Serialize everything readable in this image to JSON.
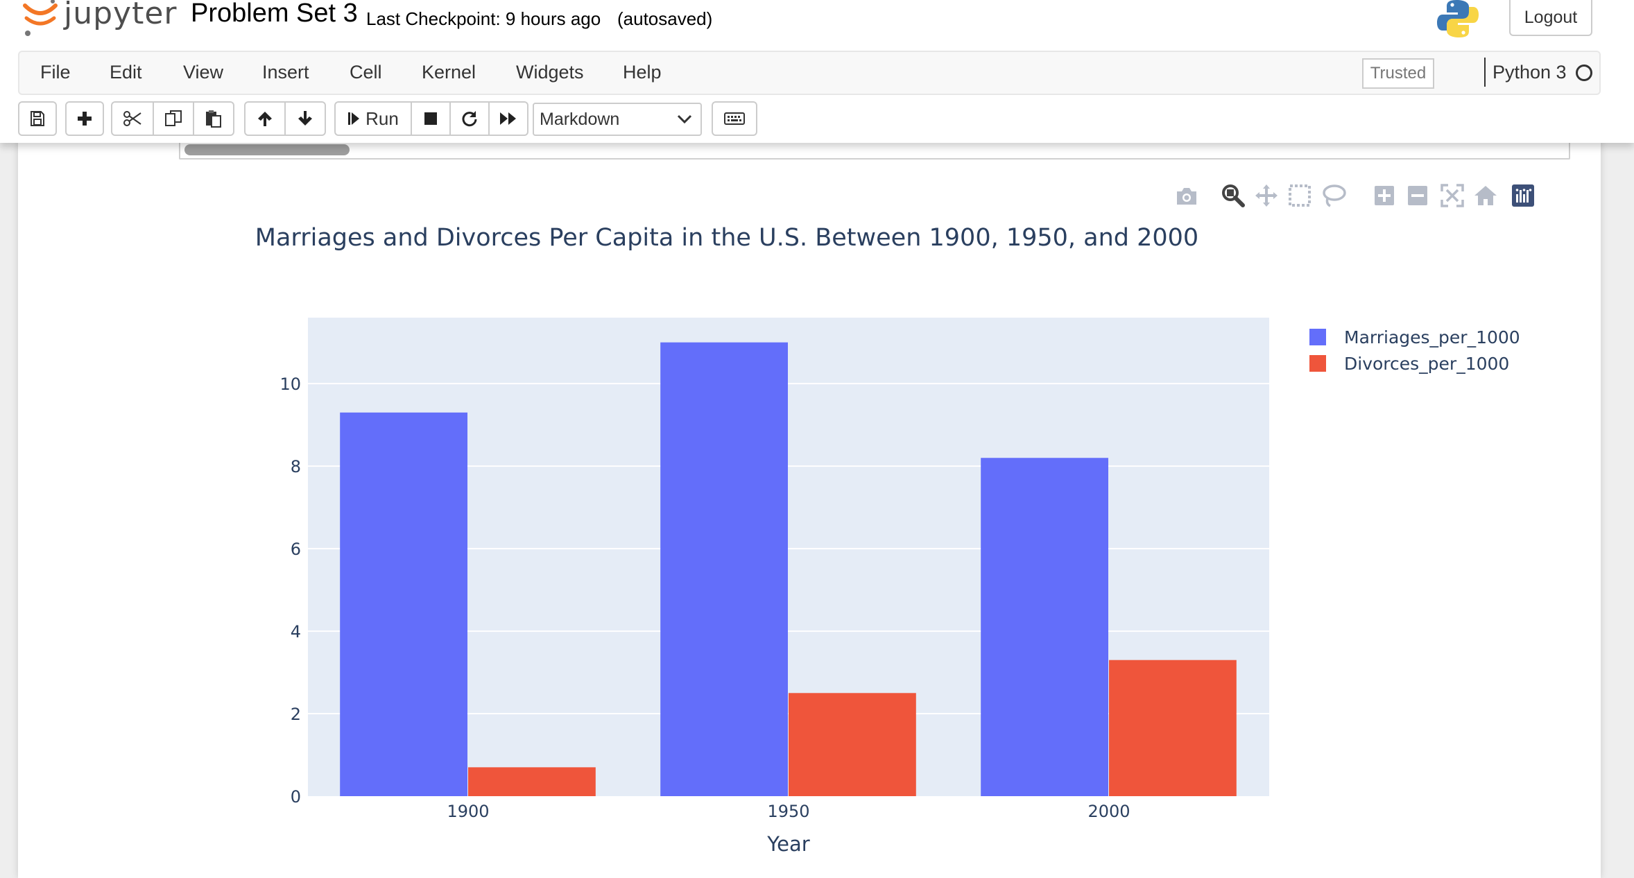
{
  "header": {
    "logo_text": "jupyter",
    "notebook_name": "Problem Set 3",
    "checkpoint": "Last Checkpoint: 9 hours ago",
    "autosave": "(autosaved)",
    "logout_label": "Logout"
  },
  "menubar": {
    "items": [
      "File",
      "Edit",
      "View",
      "Insert",
      "Cell",
      "Kernel",
      "Widgets",
      "Help"
    ],
    "trusted_label": "Trusted",
    "kernel_name": "Python 3"
  },
  "toolbar": {
    "run_label": "Run",
    "cell_type": "Markdown"
  },
  "modebar": {
    "icons": [
      "camera-icon",
      "zoom-icon",
      "pan-icon",
      "box-select-icon",
      "lasso-select-icon",
      "zoom-in-icon",
      "zoom-out-icon",
      "autoscale-icon",
      "reset-axes-icon",
      "plotly-logo-icon"
    ]
  },
  "chart_data": {
    "type": "bar",
    "title": "Marriages and Divorces Per Capita in the U.S. Between 1900, 1950, and 2000",
    "xlabel": "Year",
    "ylabel": "",
    "categories": [
      "1900",
      "1950",
      "2000"
    ],
    "series": [
      {
        "name": "Marriages_per_1000",
        "values": [
          9.3,
          11.0,
          8.2
        ],
        "color": "#636efa"
      },
      {
        "name": "Divorces_per_1000",
        "values": [
          0.7,
          2.5,
          3.3
        ],
        "color": "#ef553b"
      }
    ],
    "ylim": [
      0,
      11.6
    ],
    "yticks": [
      0,
      2,
      4,
      6,
      8,
      10
    ],
    "grid": true,
    "legend_position": "top-right",
    "plot_bgcolor": "#e5ecf6"
  }
}
